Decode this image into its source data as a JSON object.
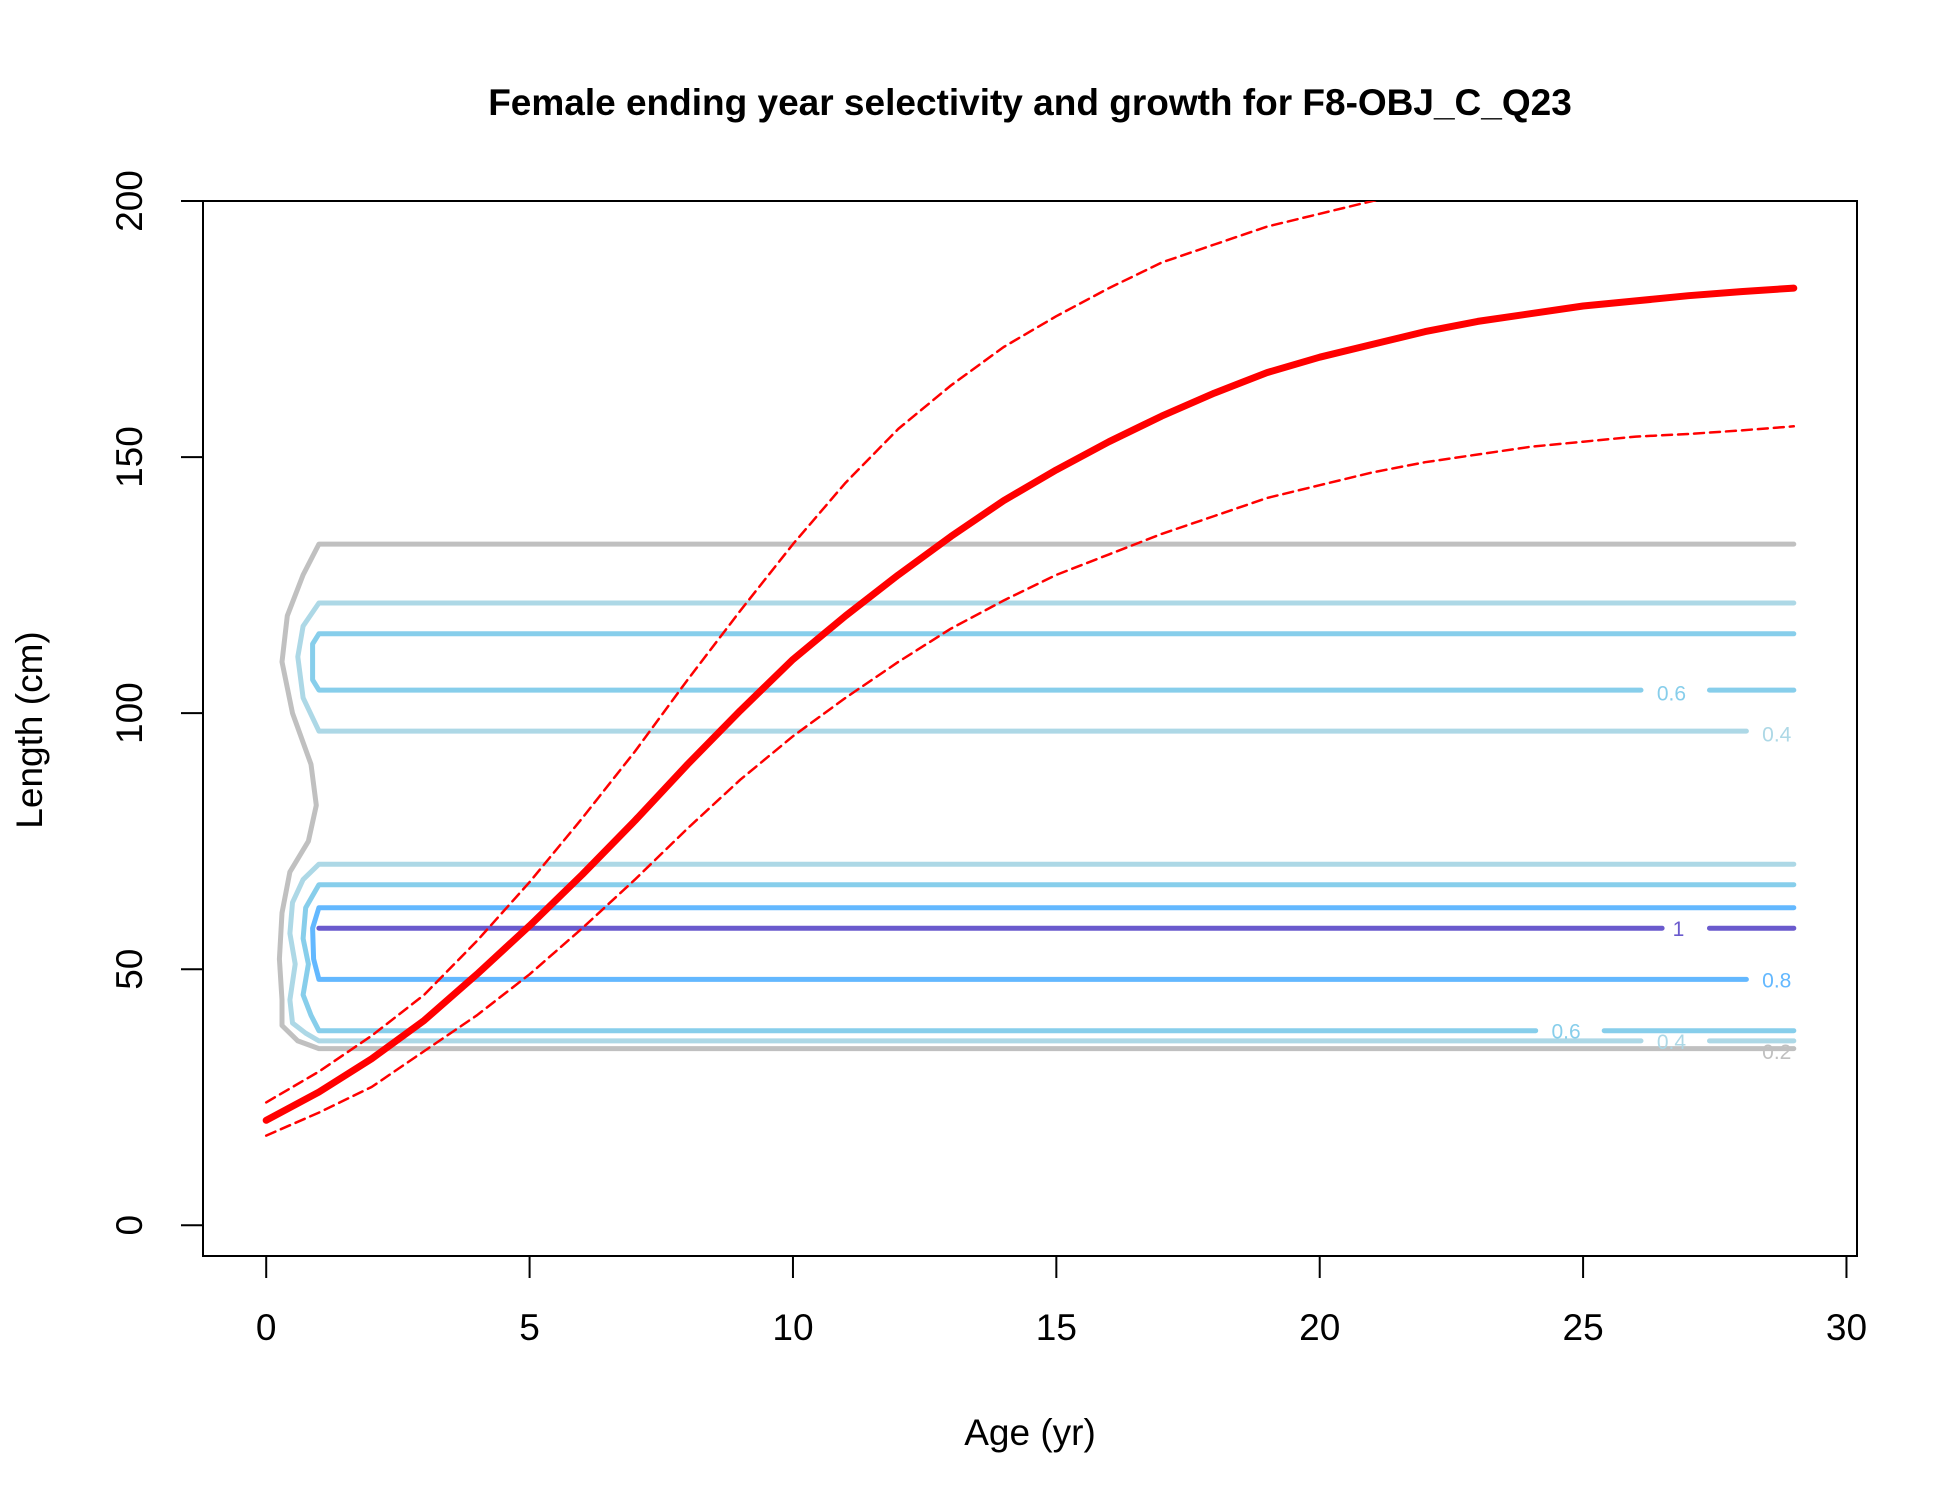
{
  "chart_data": {
    "type": "line",
    "title": "Female ending year selectivity and growth for F8-OBJ_C_Q23",
    "xlabel": "Age (yr)",
    "ylabel": "Length (cm)",
    "xlim": [
      -1.2,
      30.2
    ],
    "ylim": [
      -6,
      200
    ],
    "x_ticks": [
      "0",
      "5",
      "10",
      "15",
      "20",
      "25",
      "30"
    ],
    "y_ticks": [
      "0",
      "50",
      "100",
      "150",
      "200"
    ],
    "grid": false,
    "legend": "none",
    "growth": {
      "color": "#ff0000",
      "ages": [
        0,
        1,
        2,
        3,
        4,
        5,
        6,
        7,
        8,
        9,
        10,
        11,
        12,
        13,
        14,
        15,
        16,
        17,
        18,
        19,
        20,
        21,
        22,
        23,
        24,
        25,
        26,
        27,
        28,
        29
      ],
      "mean": [
        20.5,
        26,
        32.5,
        40,
        49,
        58.5,
        68.5,
        79,
        90,
        100.5,
        110.5,
        119,
        127,
        134.5,
        141.5,
        147.5,
        153,
        158,
        162.5,
        166.5,
        169.5,
        172,
        174.5,
        176.5,
        178,
        179.5,
        180.5,
        181.5,
        182.3,
        183
      ],
      "upper": [
        24,
        30,
        37,
        45,
        55.5,
        67,
        79.5,
        92.5,
        106.5,
        120,
        133,
        145,
        155.5,
        164,
        171.5,
        177.5,
        183,
        188,
        191.5,
        195,
        197.5,
        200,
        202,
        203.5,
        205,
        206,
        207,
        208,
        208.5,
        209
      ],
      "lower": [
        17.5,
        22,
        27,
        34,
        41,
        49,
        58,
        67.5,
        77.5,
        87,
        95.5,
        103,
        110,
        116.5,
        122,
        127,
        131,
        135,
        138.5,
        142,
        144.5,
        147,
        149,
        150.5,
        152,
        153,
        154,
        154.5,
        155.2,
        156
      ]
    },
    "selectivity_contours": [
      {
        "level": "0.2",
        "color": "#c0c0c0",
        "label_at": [
          28.4,
          34
        ]
      },
      {
        "level": "0.4",
        "color": "#add8e6",
        "label_at": [
          28.4,
          96
        ],
        "label_at_2": [
          26.4,
          36
        ]
      },
      {
        "level": "0.6",
        "color": "#87ceeb",
        "label_at": [
          26.4,
          104
        ],
        "label_at_2": [
          24.4,
          38
        ]
      },
      {
        "level": "0.8",
        "color": "#63b8ff",
        "label_at": [
          28.4,
          48
        ]
      },
      {
        "level": "1",
        "color": "#6a5acd",
        "label_at": [
          26.7,
          58
        ]
      }
    ]
  }
}
